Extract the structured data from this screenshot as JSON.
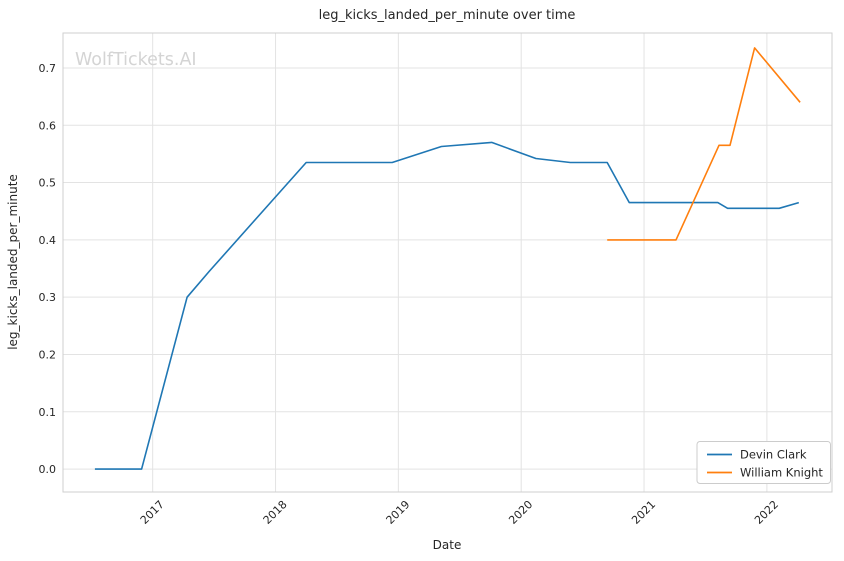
{
  "chart_data": {
    "type": "line",
    "title": "leg_kicks_landed_per_minute over time",
    "xlabel": "Date",
    "ylabel": "leg_kicks_landed_per_minute",
    "watermark": "WolfTickets.AI",
    "grid": true,
    "legend_position": "lower right",
    "xlim": [
      2016.27,
      2022.53
    ],
    "ylim": [
      -0.04,
      0.761
    ],
    "x_ticks": [
      2017,
      2018,
      2019,
      2020,
      2021,
      2022
    ],
    "y_ticks": [
      "0.0",
      "0.1",
      "0.2",
      "0.3",
      "0.4",
      "0.5",
      "0.6",
      "0.7"
    ],
    "colors": {
      "grid": "#e3e3e3",
      "spine": "#cfcfcf",
      "text": "#262626",
      "watermark": "#d4d4d4",
      "background": "#ffffff",
      "legend_border": "#cccccc"
    },
    "series": [
      {
        "name": "Devin Clark",
        "color": "#1f77b4",
        "points": [
          [
            2016.53,
            0.0
          ],
          [
            2016.91,
            0.0
          ],
          [
            2017.28,
            0.3
          ],
          [
            2017.46,
            0.345
          ],
          [
            2018.25,
            0.535
          ],
          [
            2018.95,
            0.535
          ],
          [
            2019.35,
            0.563
          ],
          [
            2019.76,
            0.57
          ],
          [
            2020.12,
            0.542
          ],
          [
            2020.4,
            0.535
          ],
          [
            2020.7,
            0.535
          ],
          [
            2020.88,
            0.465
          ],
          [
            2021.6,
            0.465
          ],
          [
            2021.68,
            0.455
          ],
          [
            2022.1,
            0.455
          ],
          [
            2022.26,
            0.465
          ]
        ]
      },
      {
        "name": "William Knight",
        "color": "#ff7f0e",
        "points": [
          [
            2020.7,
            0.4
          ],
          [
            2021.26,
            0.4
          ],
          [
            2021.61,
            0.565
          ],
          [
            2021.7,
            0.565
          ],
          [
            2021.9,
            0.735
          ],
          [
            2022.27,
            0.64
          ]
        ]
      }
    ]
  }
}
